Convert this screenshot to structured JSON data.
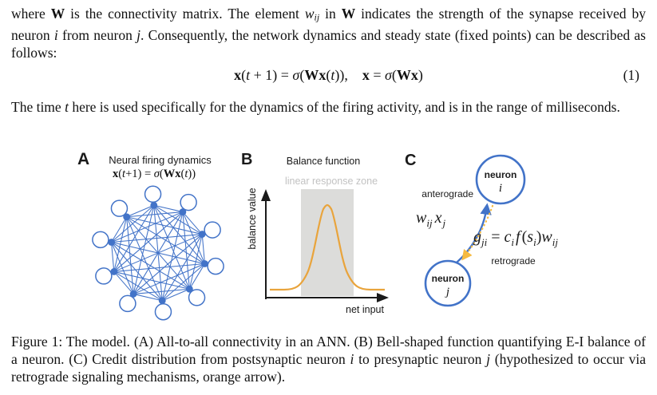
{
  "doc": {
    "p1": [
      "where ",
      "W",
      " is the connectivity matrix. The element ",
      "w",
      "ij",
      " in ",
      "W",
      " indicates the strength of the synapse received by neuron ",
      "i",
      " from neuron ",
      "j",
      ". Consequently, the network dynamics and steady state (fixed points) can be described as follows:"
    ],
    "equation": {
      "parts": [
        "x",
        "(",
        "t",
        " + 1) = ",
        "σ",
        "(",
        "Wx",
        "(",
        "t",
        ")),",
        "x",
        " = ",
        "σ",
        "(",
        "Wx",
        ")"
      ],
      "number": "(1)"
    },
    "p2": [
      "The time ",
      "t",
      " here is used specifically for the dynamics of the firing activity, and is in the range of milliseconds."
    ],
    "caption": [
      "Figure 1: The model. (A) All-to-all connectivity in an ANN. (B) Bell-shaped function quantifying E-I balance of a neuron. (C) Credit distribution from postsynaptic neuron ",
      "i",
      " to presynaptic neuron ",
      "j",
      " (hypothesized to occur via retrograde signaling mechanisms, orange arrow)."
    ]
  },
  "figure": {
    "panel_a": {
      "label": "A",
      "title": "Neural firing dynamics",
      "equation": [
        "x",
        "(",
        "t",
        "+1) = ",
        "σ",
        "(",
        "Wx",
        "(",
        "t",
        "))"
      ],
      "node_count": 10
    },
    "panel_b": {
      "label": "B",
      "title": "Balance function",
      "zone_label": "linear response zone",
      "ylabel": "balance value",
      "xlabel": "net input"
    },
    "panel_c": {
      "label": "C",
      "neuron_i_line1": "neuron",
      "neuron_i_line2": "i",
      "neuron_j_line1": "neuron",
      "neuron_j_line2": "j",
      "anterograde_label": "anterograde",
      "retrograde_label": "retrograde",
      "weight_formula": [
        "w",
        "ij",
        "x",
        "j"
      ],
      "credit_formula": [
        "g",
        "ji",
        " = ",
        "c",
        "i",
        "f",
        "(",
        "s",
        "i",
        ")",
        "w",
        "ij"
      ]
    },
    "colors": {
      "blue": "#4273C8",
      "orange_curve": "#E9A43C",
      "orange_arrow": "#F6BA40",
      "zone_fill": "#DCDCDA",
      "zone_text": "#C2C2C2",
      "text": "#111111"
    }
  }
}
